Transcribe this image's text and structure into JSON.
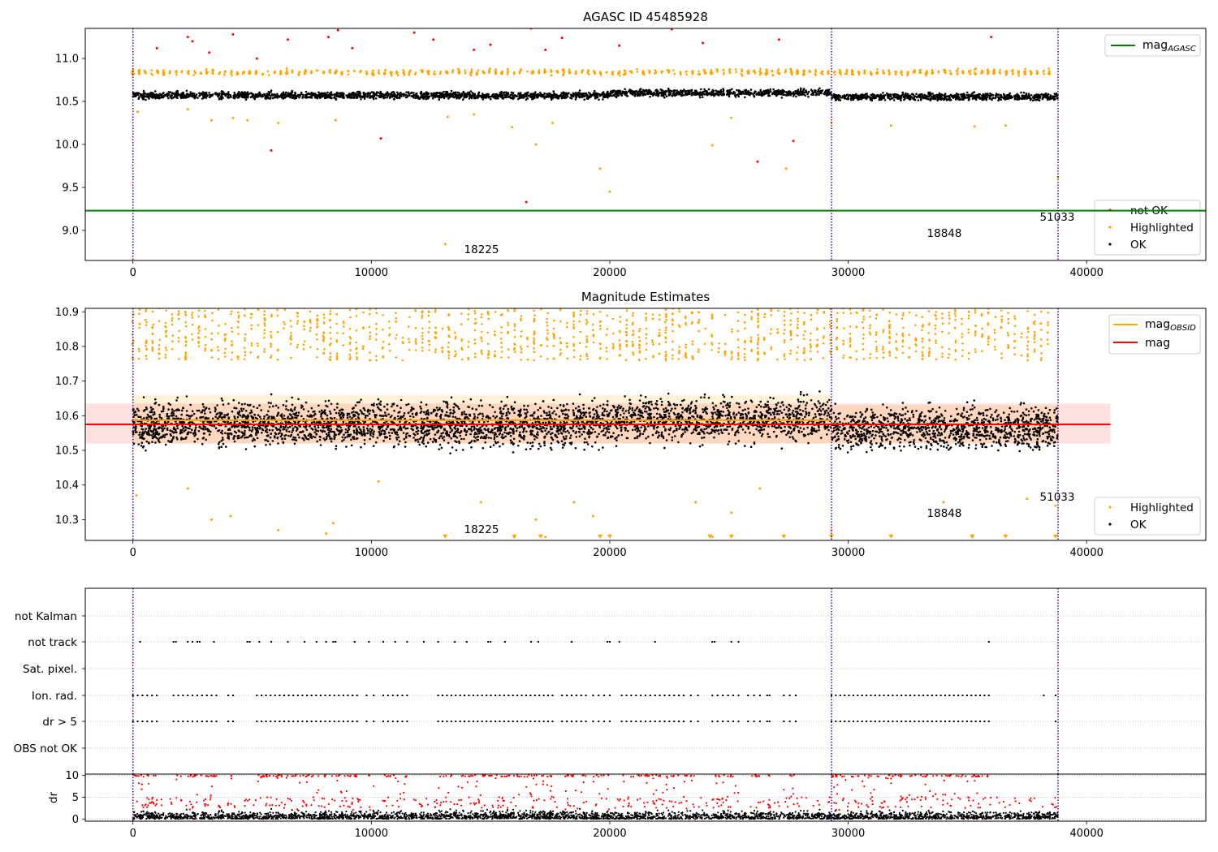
{
  "figure": {
    "panel1_title": "AGASC ID 45485928",
    "panel2_title": "Magnitude Estimates",
    "obsid_labels": [
      {
        "text": "18225",
        "x": 14500,
        "p1_y": 8.73,
        "p2_y": 10.262
      },
      {
        "text": "18848",
        "x": 34000,
        "p1_y": 8.93,
        "p2_y": 10.317
      },
      {
        "text": "51033",
        "x": 38750,
        "p1_y": 9.11,
        "p2_y": 10.358
      }
    ],
    "legend1": {
      "upper": [
        "mag"
      ],
      "upper_sub": [
        "AGASC"
      ],
      "lower": [
        "not OK",
        "Highlighted",
        "OK"
      ]
    },
    "legend2": {
      "upper": [
        "mag",
        "mag"
      ],
      "upper_sub": [
        "OBSID",
        ""
      ],
      "lower": [
        "Highlighted",
        "OK"
      ]
    },
    "flag_labels": [
      "not Kalman",
      "not track",
      "Sat. pixel.",
      "Ion. rad.",
      "dr > 5",
      "OBS not OK"
    ],
    "dr_ylabel": "dr"
  },
  "colors": {
    "ok": "#000000",
    "highlighted": "#ffa500",
    "not_ok": "#ff0000",
    "agasc_line": "#008000",
    "mag_line": "#ff0000",
    "obsid_line": "#ffa500",
    "obsid_boundary": "#4b0082"
  },
  "chart_data": [
    {
      "type": "scatter",
      "title": "AGASC ID 45485928",
      "xlim": [
        -2000,
        45000
      ],
      "ylim": [
        8.65,
        11.35
      ],
      "xticks": [
        0,
        10000,
        20000,
        30000,
        40000
      ],
      "yticks": [
        9.0,
        9.5,
        10.0,
        10.5,
        11.0
      ],
      "grid": false,
      "legend_placement": [
        "upper right",
        "lower right"
      ],
      "mag_agasc": 9.23,
      "obsid_boundaries": [
        0,
        29300,
        38800
      ],
      "ok_band": {
        "x": [
          0,
          38800
        ],
        "center": 10.57,
        "spread": 0.06
      },
      "highlighted_band": {
        "center": 10.84,
        "spread": 0.05
      },
      "series": [
        {
          "name": "not OK",
          "points": [
            [
              1000,
              11.12
            ],
            [
              2300,
              11.25
            ],
            [
              2500,
              11.2
            ],
            [
              3200,
              11.07
            ],
            [
              4200,
              11.28
            ],
            [
              5200,
              11.0
            ],
            [
              5800,
              9.93
            ],
            [
              6500,
              11.22
            ],
            [
              8200,
              11.25
            ],
            [
              8600,
              11.33
            ],
            [
              9200,
              11.12
            ],
            [
              10400,
              10.07
            ],
            [
              11800,
              11.3
            ],
            [
              12600,
              11.22
            ],
            [
              14300,
              11.1
            ],
            [
              15000,
              11.16
            ],
            [
              16500,
              9.33
            ],
            [
              16700,
              11.35
            ],
            [
              17300,
              11.1
            ],
            [
              18000,
              11.24
            ],
            [
              20400,
              11.15
            ],
            [
              22600,
              11.34
            ],
            [
              23900,
              11.18
            ],
            [
              26200,
              9.8
            ],
            [
              27100,
              11.22
            ],
            [
              27700,
              10.04
            ],
            [
              36000,
              11.25
            ]
          ]
        },
        {
          "name": "Highlighted",
          "points": [
            [
              200,
              10.38
            ],
            [
              2300,
              10.41
            ],
            [
              3300,
              10.28
            ],
            [
              4200,
              10.31
            ],
            [
              4800,
              10.28
            ],
            [
              6100,
              10.25
            ],
            [
              8500,
              10.28
            ],
            [
              13100,
              8.84
            ],
            [
              13200,
              10.32
            ],
            [
              14300,
              10.35
            ],
            [
              15900,
              10.2
            ],
            [
              16900,
              10.0
            ],
            [
              17600,
              10.25
            ],
            [
              19600,
              9.72
            ],
            [
              20000,
              9.45
            ],
            [
              24300,
              9.99
            ],
            [
              25100,
              10.31
            ],
            [
              27400,
              9.72
            ],
            [
              29300,
              10.25
            ],
            [
              31800,
              10.22
            ],
            [
              35300,
              10.21
            ],
            [
              36600,
              10.22
            ],
            [
              38800,
              9.62
            ]
          ]
        }
      ]
    },
    {
      "type": "scatter",
      "title": "Magnitude Estimates",
      "xlim": [
        -2000,
        45000
      ],
      "ylim": [
        10.24,
        10.91
      ],
      "xticks": [
        0,
        10000,
        20000,
        30000,
        40000
      ],
      "yticks": [
        10.3,
        10.4,
        10.5,
        10.6,
        10.7,
        10.8,
        10.9
      ],
      "grid": false,
      "legend_placement": [
        "upper right",
        "lower right"
      ],
      "mag": {
        "value": 10.575,
        "band": [
          10.52,
          10.635
        ],
        "x": [
          -2000,
          41000
        ]
      },
      "mag_obsid": [
        {
          "x": [
            0,
            29300
          ],
          "value": 10.587,
          "band": [
            10.52,
            10.66
          ]
        },
        {
          "x": [
            29300,
            38800
          ],
          "value": 10.575,
          "band": [
            10.52,
            10.63
          ]
        }
      ],
      "obsid_boundaries": [
        0,
        29300,
        38800
      ],
      "series": [
        {
          "name": "Highlighted",
          "points": [
            [
              150,
              10.37
            ],
            [
              2300,
              10.39
            ],
            [
              3300,
              10.3
            ],
            [
              4100,
              10.31
            ],
            [
              6100,
              10.27
            ],
            [
              8100,
              10.26
            ],
            [
              8400,
              10.29
            ],
            [
              10300,
              10.41
            ],
            [
              14600,
              10.35
            ],
            [
              16000,
              10.25
            ],
            [
              16900,
              10.3
            ],
            [
              17300,
              10.25
            ],
            [
              18500,
              10.35
            ],
            [
              19300,
              10.31
            ],
            [
              23600,
              10.35
            ],
            [
              24300,
              10.25
            ],
            [
              25100,
              10.32
            ],
            [
              26300,
              10.39
            ],
            [
              29300,
              10.27
            ],
            [
              34000,
              10.35
            ],
            [
              35200,
              10.25
            ],
            [
              37500,
              10.36
            ],
            [
              38700,
              10.34
            ]
          ]
        },
        {
          "name": "Highlighted (clipped below)",
          "points": [
            [
              13100,
              10.25
            ],
            [
              16000,
              10.25
            ],
            [
              17100,
              10.25
            ],
            [
              19600,
              10.25
            ],
            [
              20000,
              10.25
            ],
            [
              24200,
              10.25
            ],
            [
              25100,
              10.25
            ],
            [
              27300,
              10.25
            ],
            [
              29300,
              10.25
            ],
            [
              31800,
              10.25
            ],
            [
              35200,
              10.25
            ],
            [
              36600,
              10.25
            ],
            [
              38700,
              10.25
            ]
          ]
        }
      ]
    },
    {
      "type": "scatter",
      "title": "",
      "xlim": [
        -2000,
        45000
      ],
      "categories": [
        "not Kalman",
        "not track",
        "Sat. pixel.",
        "Ion. rad.",
        "dr > 5",
        "OBS not OK"
      ],
      "grid": true,
      "flag_x": {
        "not track": [
          300,
          1700,
          1800,
          2300,
          2500,
          2700,
          2800,
          3400,
          4800,
          4900,
          5300,
          5800,
          6500,
          7200,
          7700,
          8100,
          8400,
          8500,
          9300,
          9900,
          10500,
          11000,
          11500,
          12200,
          12800,
          13500,
          14000,
          14900,
          15000,
          15600,
          16700,
          17000,
          18400,
          19900,
          20000,
          20400,
          21900,
          24300,
          24400,
          25100,
          25400,
          35900
        ]
      },
      "band_flags": {
        "rows": [
          "Ion. rad.",
          "dr > 5"
        ],
        "x_ranges": [
          [
            0,
            1000
          ],
          [
            1700,
            3500
          ],
          [
            4000,
            4200
          ],
          [
            5200,
            9400
          ],
          [
            9800,
            10100
          ],
          [
            10500,
            11500
          ],
          [
            12800,
            17600
          ],
          [
            18000,
            19000
          ],
          [
            19300,
            20000
          ],
          [
            20500,
            22900
          ],
          [
            23100,
            23700
          ],
          [
            24300,
            25400
          ],
          [
            25800,
            26300
          ],
          [
            26600,
            26700
          ],
          [
            27300,
            27800
          ],
          [
            29300,
            35900
          ]
        ],
        "extra": [
          [
            38200,
            "Ion. rad."
          ],
          [
            38700,
            "Ion. rad."
          ],
          [
            38700,
            "dr > 5"
          ]
        ]
      }
    },
    {
      "type": "scatter",
      "title": "",
      "ylabel": "dr",
      "xlim": [
        -2000,
        45000
      ],
      "ylim": [
        -0.5,
        10.3
      ],
      "xticks": [
        0,
        10000,
        20000,
        30000,
        40000
      ],
      "yticks": [
        0,
        5,
        10
      ],
      "grid": true,
      "ok_range": [
        0,
        3
      ],
      "high_x_ranges": [
        [
          0,
          1000
        ],
        [
          1700,
          3500
        ],
        [
          4000,
          4200
        ],
        [
          5200,
          9400
        ],
        [
          9800,
          10100
        ],
        [
          10500,
          11500
        ],
        [
          12800,
          17600
        ],
        [
          18000,
          19000
        ],
        [
          19300,
          20000
        ],
        [
          20500,
          22900
        ],
        [
          23100,
          23700
        ],
        [
          24300,
          25400
        ],
        [
          25800,
          26300
        ],
        [
          26600,
          26700
        ],
        [
          27300,
          27800
        ],
        [
          29300,
          35900
        ]
      ]
    }
  ]
}
